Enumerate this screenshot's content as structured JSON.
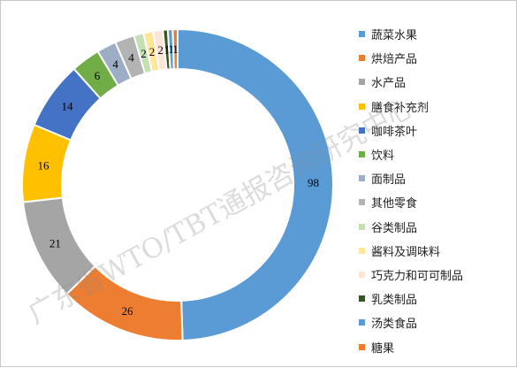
{
  "chart_data": {
    "type": "donut",
    "categories": [
      "蔬菜水果",
      "烘焙产品",
      "水产品",
      "膳食补充剂",
      "咖啡茶叶",
      "饮料",
      "面制品",
      "其他零食",
      "谷类制品",
      "酱料及调味料",
      "巧克力和可可制品",
      "乳类制品",
      "汤类食品",
      "糖果"
    ],
    "values": [
      98,
      26,
      21,
      16,
      14,
      6,
      4,
      4,
      2,
      2,
      2,
      1,
      1,
      1
    ],
    "colors": [
      "#5b9bd5",
      "#ed7d31",
      "#a5a5a5",
      "#ffc000",
      "#4472c4",
      "#70ad47",
      "#9dadc6",
      "#b3b3b3",
      "#c5e0b4",
      "#ffe699",
      "#fbe5d6",
      "#375623",
      "#5b9bd5",
      "#ed7d31"
    ],
    "legend_position": "right",
    "start_angle_deg": 0,
    "direction": "clockwise"
  },
  "watermark": "广东省WTO/TBT通报咨询研究中心"
}
